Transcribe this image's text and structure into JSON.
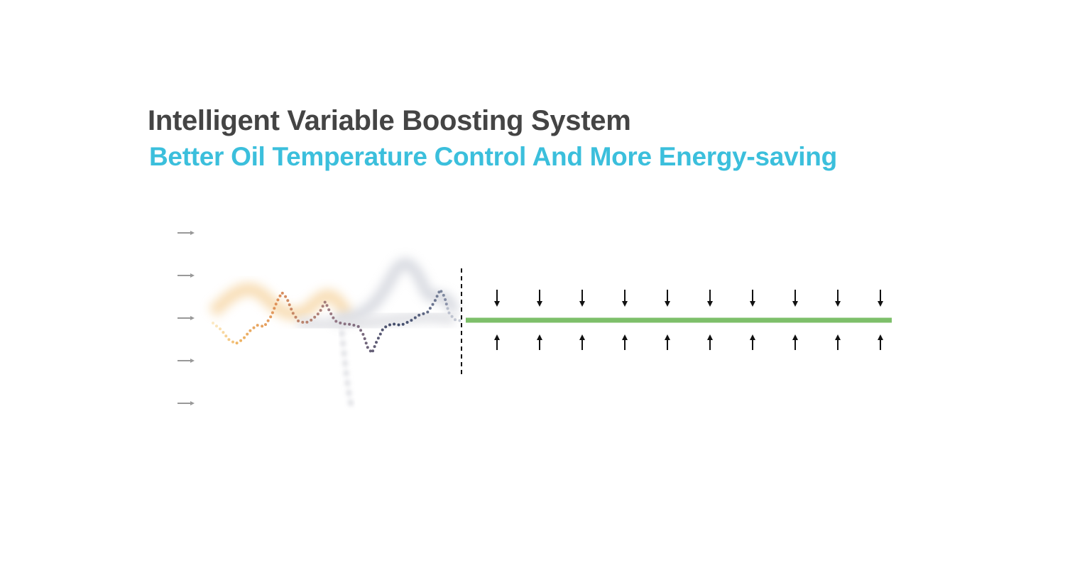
{
  "header": {
    "title": "Intelligent Variable Boosting System",
    "subtitle": "Better Oil Temperature Control And More Energy-saving"
  },
  "colors": {
    "title": "#444444",
    "subtitle": "#3bbfdc",
    "stable_line": "#7dbf6a",
    "arrow": "#111111",
    "axis_marker": "#999999",
    "divider": "#111111",
    "wave_gradient": [
      "#f7c35a",
      "#d9834a",
      "#8a6a7a",
      "#2e3a5c",
      "#9aa3b8"
    ]
  },
  "diagram": {
    "level_markers": 5,
    "compression_arrow_pairs": 10,
    "left_panel": "fluctuating temperature curve (unstable)",
    "right_panel": "stable temperature line held by arrows"
  }
}
